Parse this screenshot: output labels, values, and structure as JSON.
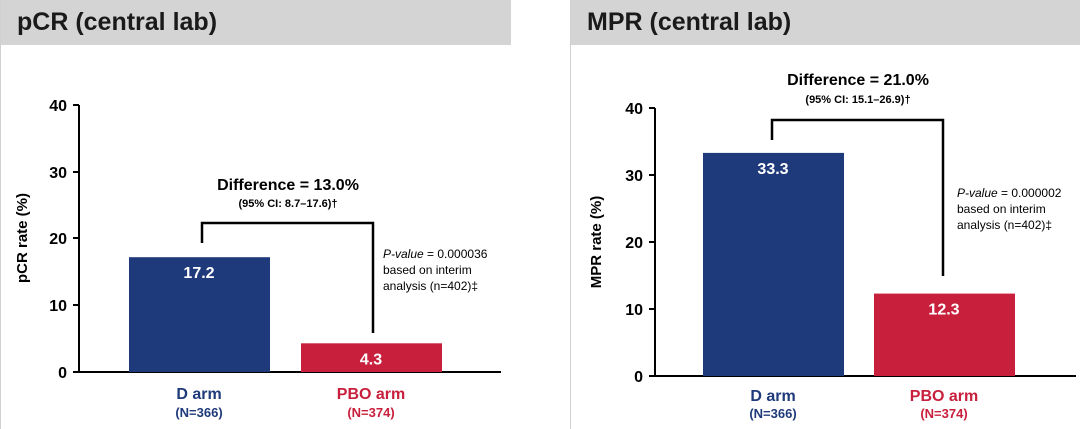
{
  "colors": {
    "d_arm": "#1f3a7a",
    "pbo_arm": "#c8203c",
    "header_bg": "#d4d4d4",
    "axis": "#000000"
  },
  "chart_data": [
    {
      "type": "bar",
      "title": "pCR (central lab)",
      "ylabel": "pCR rate (%)",
      "xlabel": "",
      "ylim": [
        0,
        40
      ],
      "yticks": [
        "0",
        "10",
        "20",
        "30",
        "40"
      ],
      "categories": [
        "D arm",
        "PBO arm"
      ],
      "category_n": [
        "(N=366)",
        "(N=374)"
      ],
      "values": [
        17.2,
        4.3
      ],
      "value_labels": [
        "17.2",
        "4.3"
      ],
      "difference_label": "Difference = 13.0%",
      "ci_label": "(95% CI: 8.7–17.6)†",
      "pvalue": {
        "label": "P-value",
        "value": " = 0.000036",
        "line2": "based on interim",
        "line3": "analysis (n=402)‡"
      }
    },
    {
      "type": "bar",
      "title": "MPR (central lab)",
      "ylabel": "MPR rate (%)",
      "xlabel": "",
      "ylim": [
        0,
        40
      ],
      "yticks": [
        "0",
        "10",
        "20",
        "30",
        "40"
      ],
      "categories": [
        "D arm",
        "PBO arm"
      ],
      "category_n": [
        "(N=366)",
        "(N=374)"
      ],
      "values": [
        33.3,
        12.3
      ],
      "value_labels": [
        "33.3",
        "12.3"
      ],
      "difference_label": "Difference = 21.0%",
      "ci_label": "(95% CI: 15.1–26.9)†",
      "pvalue": {
        "label": "P-value",
        "value": " = 0.000002",
        "line2": "based on interim",
        "line3": "analysis (n=402)‡"
      }
    }
  ]
}
